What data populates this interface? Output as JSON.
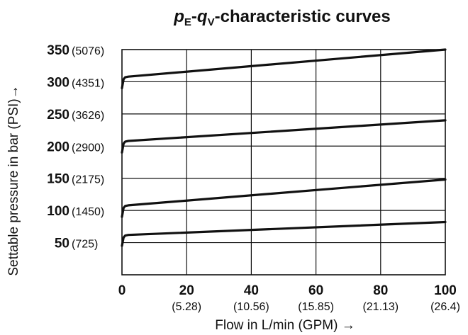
{
  "chart_data": {
    "type": "line",
    "title": {
      "p": "p",
      "p_sub": "E",
      "sep": "-",
      "q": "q",
      "q_sub": "V",
      "rest": "-characteristic curves"
    },
    "xlabel": "Flow in L/min (GPM) →",
    "ylabel": "Settable pressure in bar (PSI)→",
    "xlim": [
      0,
      100
    ],
    "ylim": [
      0,
      350
    ],
    "x_ticks": [
      {
        "value": 0,
        "label": "0",
        "sub": ""
      },
      {
        "value": 20,
        "label": "20",
        "sub": "(5.28)"
      },
      {
        "value": 40,
        "label": "40",
        "sub": "(10.56)"
      },
      {
        "value": 60,
        "label": "60",
        "sub": "(15.85)"
      },
      {
        "value": 80,
        "label": "80",
        "sub": "(21.13)"
      },
      {
        "value": 100,
        "label": "100",
        "sub": "(26.4)"
      }
    ],
    "y_ticks": [
      {
        "value": 50,
        "label": "50",
        "psi": "(725)"
      },
      {
        "value": 100,
        "label": "100",
        "psi": "(1450)"
      },
      {
        "value": 150,
        "label": "150",
        "psi": "(2175)"
      },
      {
        "value": 200,
        "label": "200",
        "psi": "(2900)"
      },
      {
        "value": 250,
        "label": "250",
        "psi": "(3626)"
      },
      {
        "value": 300,
        "label": "300",
        "psi": "(4351)"
      },
      {
        "value": 350,
        "label": "350",
        "psi": "(5076)"
      }
    ],
    "grid": true,
    "series": [
      {
        "x": [
          0,
          0.5,
          1,
          2,
          100
        ],
        "y": [
          45,
          58,
          61,
          62,
          82
        ]
      },
      {
        "x": [
          0,
          0.5,
          1,
          2,
          100
        ],
        "y": [
          90,
          104,
          107,
          108,
          148
        ]
      },
      {
        "x": [
          0,
          0.5,
          1,
          2,
          100
        ],
        "y": [
          190,
          204,
          207,
          208,
          240
        ]
      },
      {
        "x": [
          0,
          0.5,
          1,
          2,
          100
        ],
        "y": [
          290,
          304,
          307,
          308,
          350
        ]
      }
    ]
  }
}
